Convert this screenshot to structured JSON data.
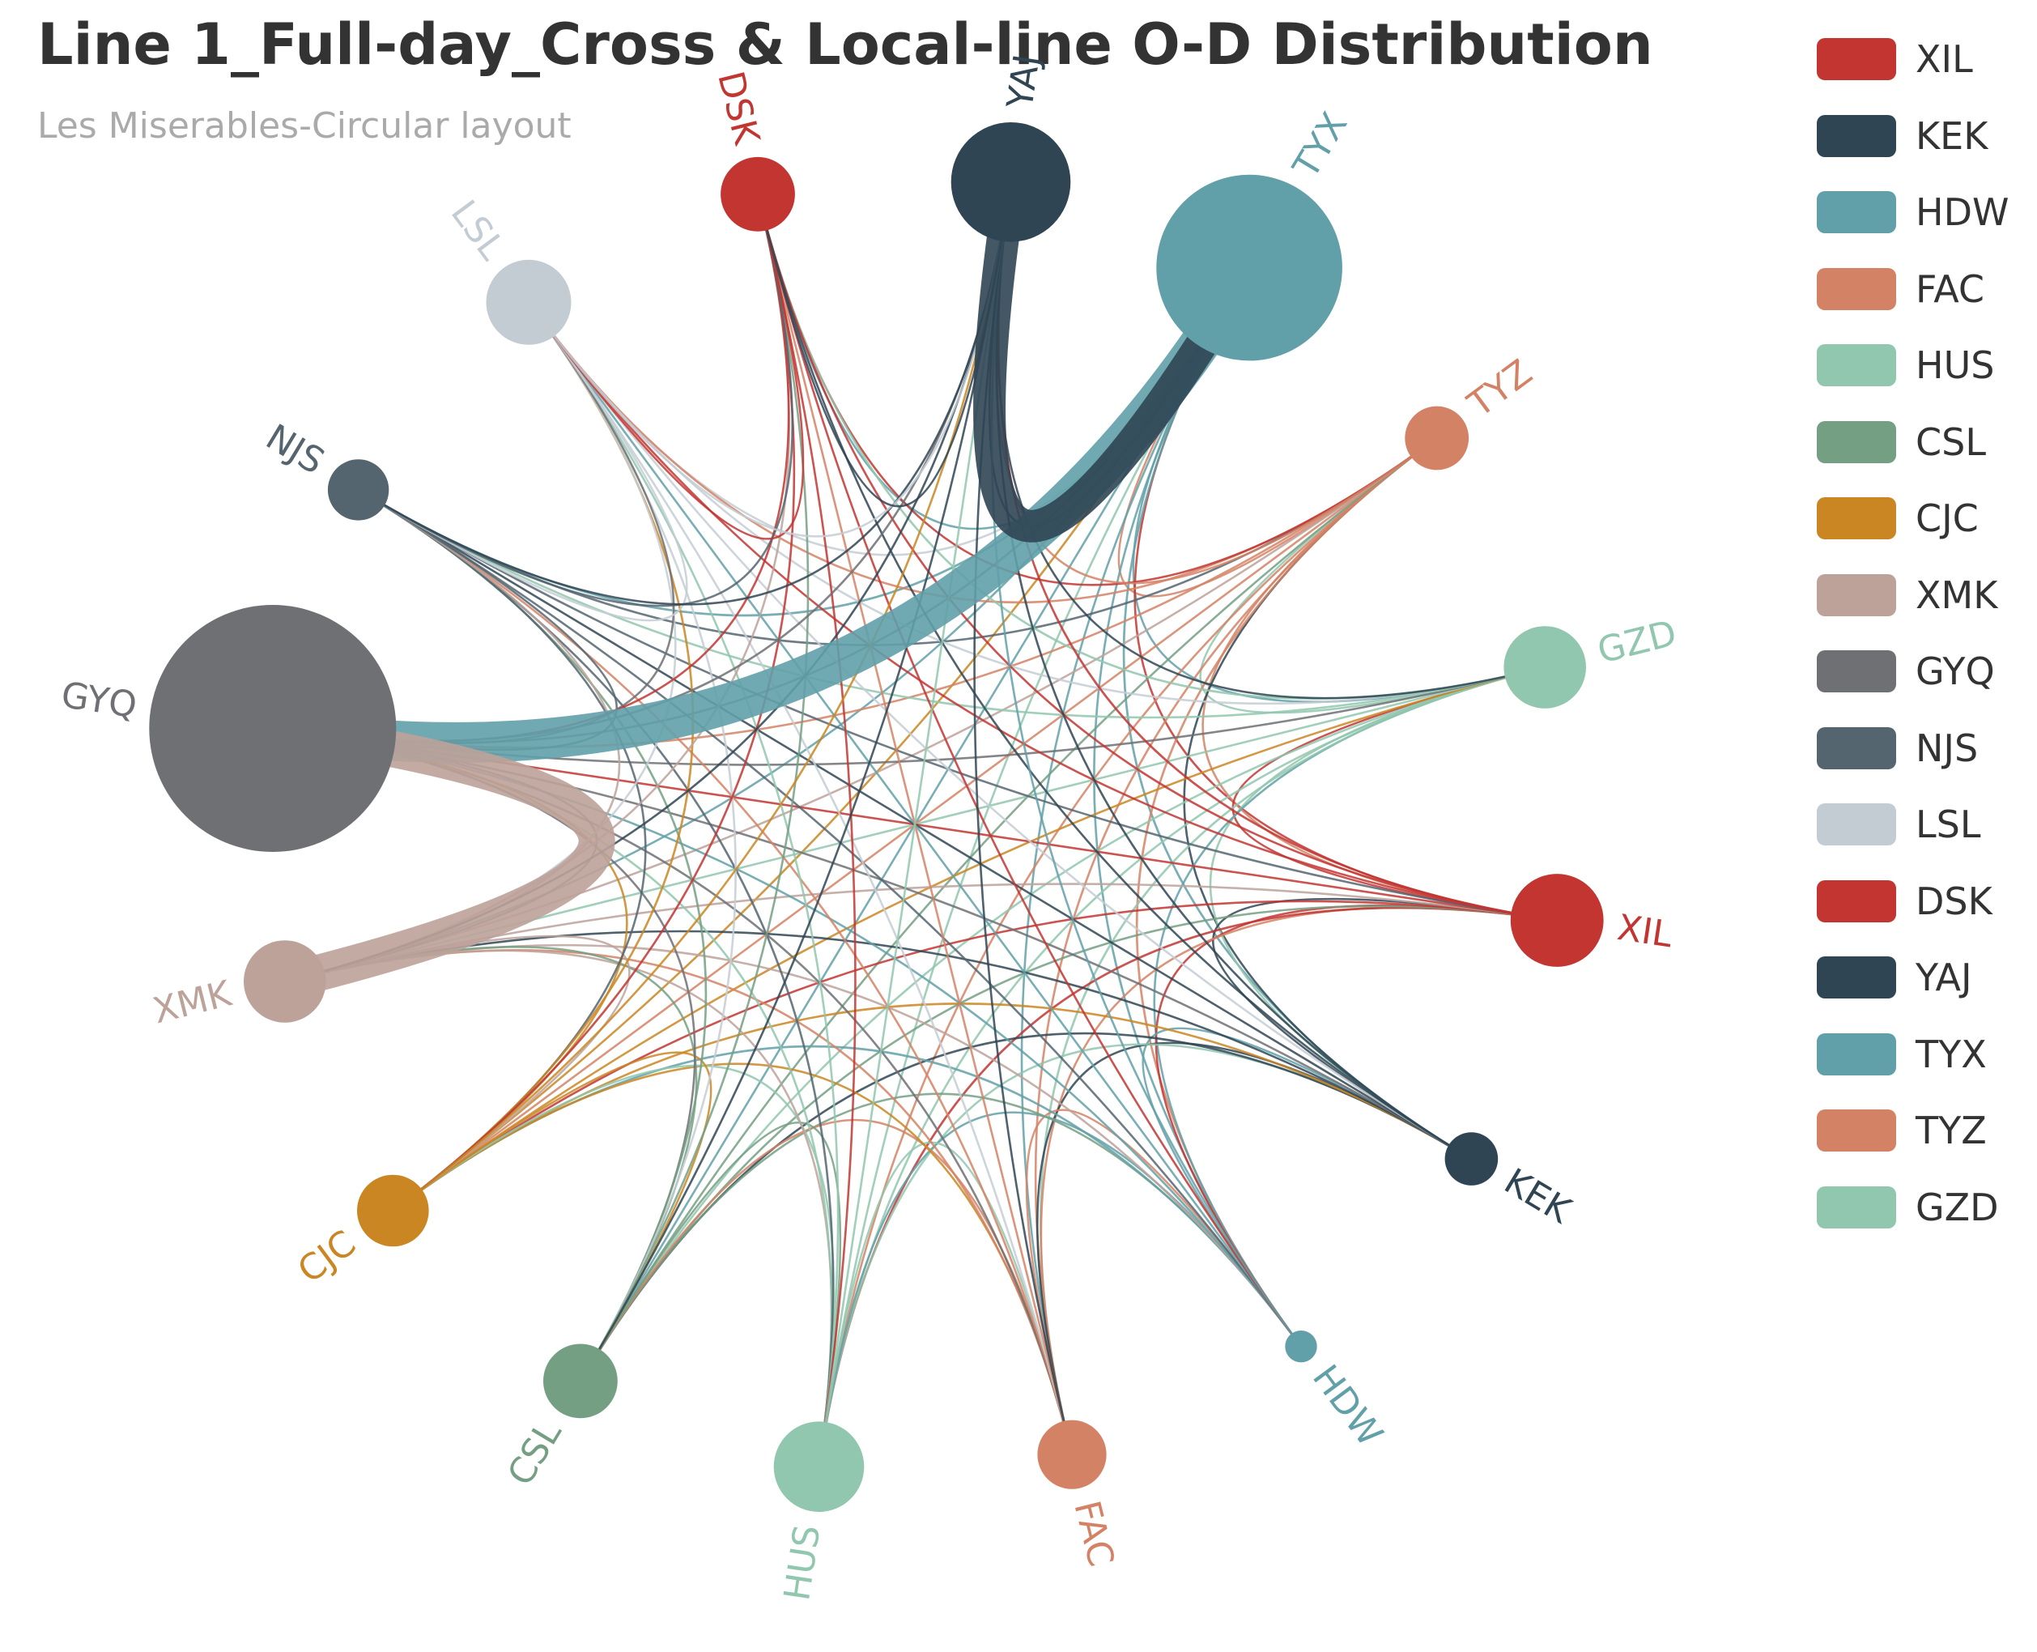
{
  "chart_data": {
    "type": "graph",
    "layout": "circular",
    "title": "Line 1_Full-day_Cross & Local-line O-D Distribution",
    "subtitle": "Les Miserables-Circular layout",
    "legend_position": "right",
    "legend": [
      "XIL",
      "KEK",
      "HDW",
      "FAC",
      "HUS",
      "CSL",
      "CJC",
      "XMK",
      "GYQ",
      "NJS",
      "LSL",
      "DSK",
      "YAJ",
      "TYX",
      "TYZ",
      "GZD"
    ],
    "nodes": [
      {
        "name": "TYX",
        "category": "TYX",
        "size": 140,
        "color": "#61a0a8"
      },
      {
        "name": "TYZ",
        "category": "TYZ",
        "size": 48,
        "color": "#d48265"
      },
      {
        "name": "GZD",
        "category": "GZD",
        "size": 62,
        "color": "#91c7ae"
      },
      {
        "name": "XIL",
        "category": "XIL",
        "size": 70,
        "color": "#c23531"
      },
      {
        "name": "KEK",
        "category": "KEK",
        "size": 40,
        "color": "#2f4554"
      },
      {
        "name": "HDW",
        "category": "HDW",
        "size": 24,
        "color": "#61a0a8"
      },
      {
        "name": "FAC",
        "category": "FAC",
        "size": 52,
        "color": "#d48265"
      },
      {
        "name": "HUS",
        "category": "HUS",
        "size": 68,
        "color": "#91c7ae"
      },
      {
        "name": "CSL",
        "category": "CSL",
        "size": 56,
        "color": "#749f83"
      },
      {
        "name": "CJC",
        "category": "CJC",
        "size": 54,
        "color": "#ca8622"
      },
      {
        "name": "XMK",
        "category": "XMK",
        "size": 62,
        "color": "#bda29a"
      },
      {
        "name": "GYQ",
        "category": "GYQ",
        "size": 186,
        "color": "#6e7074"
      },
      {
        "name": "NJS",
        "category": "NJS",
        "size": 46,
        "color": "#546570"
      },
      {
        "name": "LSL",
        "category": "LSL",
        "size": 64,
        "color": "#c4ccd3"
      },
      {
        "name": "DSK",
        "category": "DSK",
        "size": 56,
        "color": "#c23531"
      },
      {
        "name": "YAJ",
        "category": "YAJ",
        "size": 90,
        "color": "#2f4554"
      }
    ],
    "category_colors": {
      "XIL": "#c23531",
      "KEK": "#2f4554",
      "HDW": "#61a0a8",
      "FAC": "#d48265",
      "HUS": "#91c7ae",
      "CSL": "#749f83",
      "CJC": "#ca8622",
      "XMK": "#bda29a",
      "GYQ": "#6e7074",
      "NJS": "#546570",
      "LSL": "#c4ccd3",
      "DSK": "#c23531",
      "YAJ": "#2f4554",
      "TYX": "#61a0a8",
      "TYZ": "#d48265",
      "GZD": "#91c7ae"
    },
    "major_flows": [
      {
        "source": "GYQ",
        "target": "TYX",
        "weight": 10
      },
      {
        "source": "YAJ",
        "target": "TYX",
        "weight": 8
      },
      {
        "source": "GYQ",
        "target": "XMK",
        "weight": 9
      }
    ],
    "other_links": "all-to-all thin O-D links between every station pair, colored by origin station"
  }
}
